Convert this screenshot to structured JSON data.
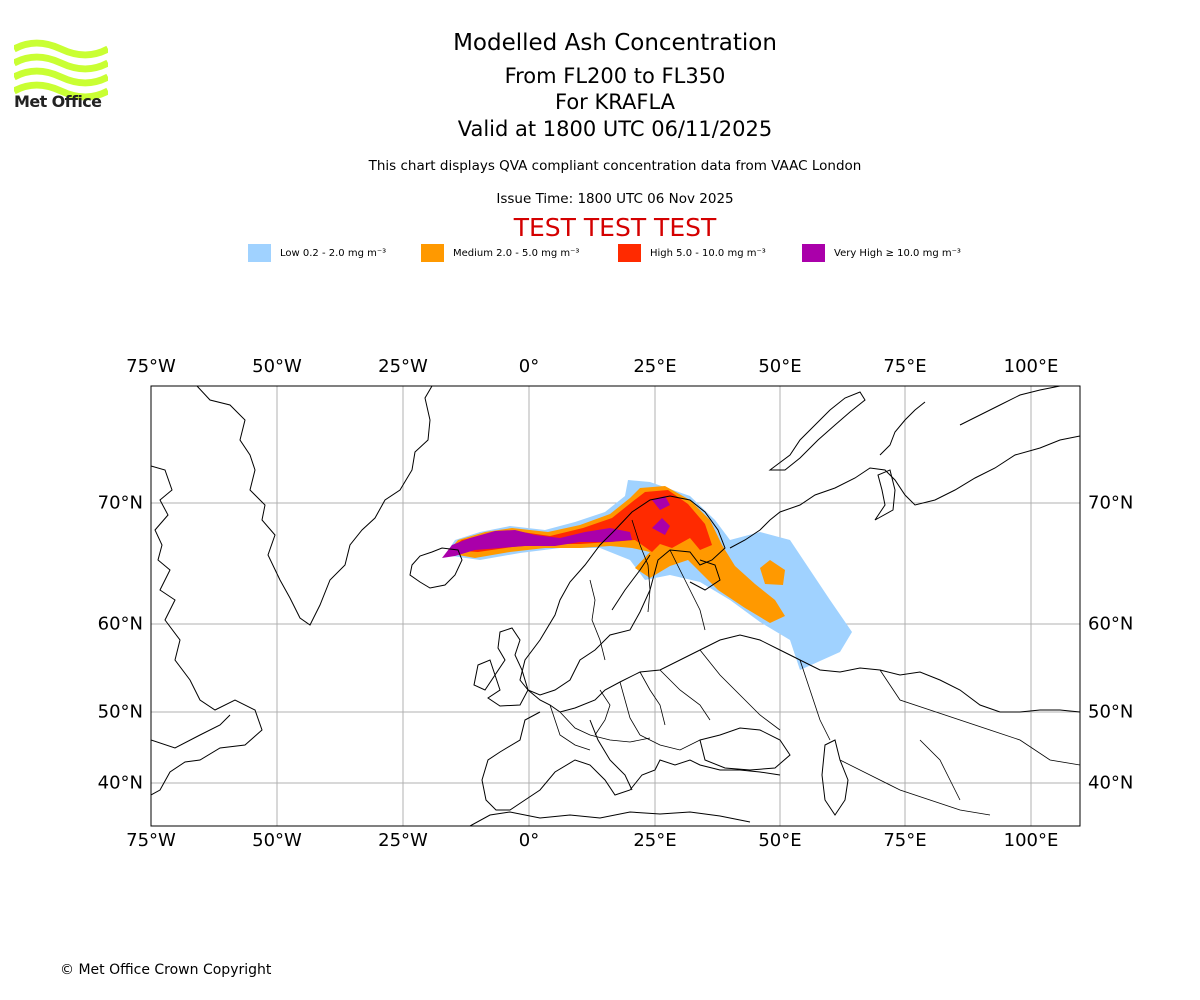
{
  "branding": {
    "logo_text": "Met Office",
    "logo_color": "#c9ff33"
  },
  "header": {
    "title": "Modelled Ash Concentration",
    "levels": "From FL200 to FL350",
    "source": "For KRAFLA",
    "valid": "Valid at 1800 UTC 06/11/2025",
    "qva_note": "This chart displays QVA compliant concentration data from VAAC London",
    "issue_time": "Issue Time: 1800 UTC 06 Nov 2025",
    "test_banner": "TEST TEST TEST",
    "test_color": "#d40000"
  },
  "legend": {
    "items": [
      {
        "label": "Low 0.2 - 2.0 mg m⁻³",
        "color": "#a0d2ff"
      },
      {
        "label": "Medium 2.0 - 5.0 mg m⁻³",
        "color": "#ff9900"
      },
      {
        "label": "High 5.0 - 10.0 mg m⁻³",
        "color": "#ff2a00"
      },
      {
        "label": "Very High ≥ 10.0 mg m⁻³",
        "color": "#aa00aa"
      }
    ]
  },
  "axes": {
    "lon_labels": [
      "75°W",
      "50°W",
      "25°W",
      "0°",
      "25°E",
      "50°E",
      "75°E",
      "100°E"
    ],
    "lat_labels": [
      "70°N",
      "60°N",
      "50°N",
      "40°N"
    ]
  },
  "footer": {
    "copyright": "© Met Office Crown Copyright"
  }
}
